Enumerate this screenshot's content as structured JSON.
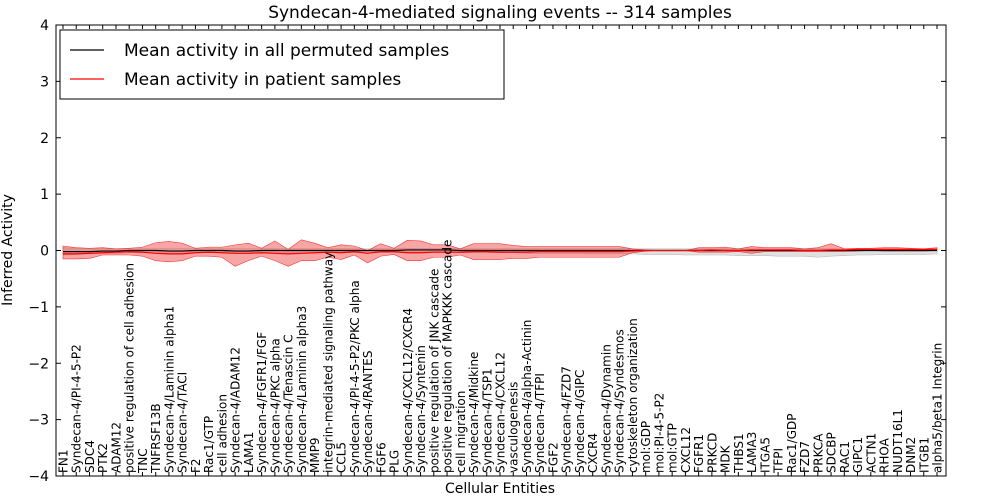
{
  "chart_data": {
    "type": "line",
    "title": "Syndecan-4-mediated signaling events -- 314 samples",
    "xlabel": "Cellular Entities",
    "ylabel": "Inferred Activity",
    "ylim": [
      -4,
      4
    ],
    "yticks": [
      -4,
      -3,
      -2,
      -1,
      0,
      1,
      2,
      3,
      4
    ],
    "grid": false,
    "legend_position": "top-left",
    "categories": [
      "FN1",
      "Syndecan-4/PI-4-5-P2",
      "SDC4",
      "PTK2",
      "ADAM12",
      "positive regulation of cell adhesion",
      "TNC",
      "TNFRSF13B",
      "Syndecan-4/Laminin alpha1",
      "Syndecan-4/TACI",
      "F2",
      "Rac1/GTP",
      "cell adhesion",
      "Syndecan-4/ADAM12",
      "LAMA1",
      "Syndecan-4/FGFR1/FGF",
      "Syndecan-4/PKC alpha",
      "Syndecan-4/Tenascin C",
      "Syndecan-4/Laminin alpha3",
      "MMP9",
      "integrin-mediated signaling pathway",
      "CCL5",
      "Syndecan-4/PI-4-5-P2/PKC alpha",
      "Syndecan-4/RANTES",
      "FGF6",
      "PLG",
      "Syndecan-4/CXCL12/CXCR4",
      "Syndecan-4/Syntenin",
      "positive regulation of JNK cascade",
      "positive regulation of MAPKKK cascade",
      "cell migration",
      "Syndecan-4/Midkine",
      "Syndecan-4/TSP1",
      "Syndecan-4/CXCL12",
      "vasculogenesis",
      "Syndecan-4/alpha-Actinin",
      "Syndecan-4/TFPI",
      "FGF2",
      "Syndecan-4/FZD7",
      "Syndecan-4/GIPC",
      "CXCR4",
      "Syndecan-4/Dynamin",
      "Syndecan-4/Syndesmos",
      "cytoskeleton organization",
      "mol:GDP",
      "mol:PI-4-5-P2",
      "mol:GTP",
      "CXCL12",
      "FGFR1",
      "PRKCD",
      "MDK",
      "THBS1",
      "LAMA3",
      "ITGA5",
      "TFPI",
      "Rac1/GDP",
      "FZD7",
      "PRKCA",
      "SDCBP",
      "RAC1",
      "GIPC1",
      "ACTN1",
      "RHOA",
      "NUDT16L1",
      "DNM2",
      "ITGB1",
      "alpha5/beta1 Integrin"
    ],
    "series": [
      {
        "name": "Mean activity in all permuted samples",
        "color": "#000000",
        "values": [
          -0.02,
          -0.02,
          -0.02,
          -0.01,
          -0.01,
          0.0,
          0.0,
          0.0,
          -0.01,
          -0.01,
          0.0,
          0.0,
          0.0,
          -0.01,
          -0.01,
          0.0,
          0.0,
          0.0,
          0.0,
          0.0,
          0.0,
          0.0,
          0.0,
          0.0,
          0.0,
          0.0,
          0.01,
          0.01,
          0.01,
          0.01,
          0.0,
          0.0,
          0.0,
          0.0,
          0.0,
          0.0,
          0.0,
          0.0,
          0.0,
          0.0,
          0.0,
          0.0,
          0.0,
          0.0,
          0.0,
          0.0,
          0.0,
          0.0,
          0.0,
          0.0,
          0.0,
          0.0,
          0.0,
          0.0,
          0.0,
          0.0,
          0.0,
          0.0,
          0.0,
          0.0,
          0.0,
          0.0,
          0.0,
          0.0,
          0.0,
          0.0,
          0.0
        ],
        "band_upper": [
          0.05,
          0.04,
          0.03,
          0.03,
          0.03,
          0.03,
          0.03,
          0.03,
          0.03,
          0.03,
          0.03,
          0.03,
          0.03,
          0.03,
          0.03,
          0.03,
          0.03,
          0.03,
          0.03,
          0.03,
          0.03,
          0.03,
          0.03,
          0.03,
          0.03,
          0.03,
          0.04,
          0.04,
          0.04,
          0.04,
          0.03,
          0.03,
          0.03,
          0.03,
          0.03,
          0.03,
          0.03,
          0.03,
          0.03,
          0.03,
          0.03,
          0.03,
          0.03,
          0.03,
          0.03,
          0.03,
          0.03,
          0.03,
          0.03,
          0.03,
          0.03,
          0.03,
          0.03,
          0.03,
          0.03,
          0.03,
          0.03,
          0.03,
          0.03,
          0.03,
          0.03,
          0.03,
          0.03,
          0.03,
          0.03,
          0.03,
          0.03
        ],
        "band_lower": [
          -0.08,
          -0.07,
          -0.06,
          -0.05,
          -0.05,
          -0.04,
          -0.04,
          -0.04,
          -0.05,
          -0.05,
          -0.04,
          -0.04,
          -0.04,
          -0.05,
          -0.05,
          -0.04,
          -0.04,
          -0.04,
          -0.04,
          -0.04,
          -0.04,
          -0.04,
          -0.04,
          -0.04,
          -0.04,
          -0.04,
          -0.03,
          -0.03,
          -0.03,
          -0.03,
          -0.04,
          -0.04,
          -0.04,
          -0.04,
          -0.04,
          -0.05,
          -0.05,
          -0.05,
          -0.05,
          -0.05,
          -0.06,
          -0.06,
          -0.06,
          -0.06,
          -0.07,
          -0.07,
          -0.07,
          -0.08,
          -0.08,
          -0.08,
          -0.08,
          -0.09,
          -0.09,
          -0.09,
          -0.1,
          -0.1,
          -0.1,
          -0.12,
          -0.1,
          -0.09,
          -0.08,
          -0.08,
          -0.07,
          -0.07,
          -0.07,
          -0.07,
          -0.06
        ]
      },
      {
        "name": "Mean activity in patient samples",
        "color": "#ff0000",
        "values": [
          -0.06,
          -0.06,
          -0.05,
          -0.04,
          -0.03,
          -0.02,
          -0.03,
          -0.05,
          -0.06,
          -0.06,
          -0.04,
          -0.03,
          -0.04,
          -0.05,
          -0.05,
          -0.04,
          -0.05,
          -0.06,
          -0.05,
          -0.04,
          -0.03,
          -0.04,
          -0.02,
          -0.05,
          -0.02,
          -0.02,
          -0.04,
          -0.04,
          -0.03,
          -0.03,
          -0.03,
          -0.02,
          -0.02,
          -0.03,
          -0.03,
          -0.03,
          -0.02,
          -0.02,
          -0.02,
          -0.02,
          -0.02,
          -0.02,
          -0.02,
          -0.01,
          0.0,
          0.0,
          0.0,
          0.0,
          0.0,
          0.01,
          0.0,
          0.0,
          0.01,
          0.01,
          0.01,
          0.01,
          0.0,
          0.0,
          0.01,
          0.01,
          0.02,
          0.02,
          0.02,
          0.02,
          0.02,
          0.02,
          0.02
        ],
        "band_upper": [
          0.08,
          0.05,
          0.04,
          0.05,
          0.03,
          0.04,
          0.06,
          0.14,
          0.16,
          0.13,
          0.04,
          0.06,
          0.06,
          0.1,
          0.13,
          0.04,
          0.17,
          0.02,
          0.19,
          0.13,
          0.05,
          0.1,
          0.08,
          0.0,
          0.12,
          0.04,
          0.18,
          0.17,
          0.1,
          0.1,
          0.03,
          0.12,
          0.12,
          0.12,
          0.09,
          0.07,
          0.07,
          0.07,
          0.07,
          0.07,
          0.07,
          0.07,
          0.07,
          0.03,
          0.01,
          0.0,
          0.0,
          0.0,
          0.05,
          0.05,
          0.06,
          0.03,
          0.07,
          0.05,
          0.05,
          0.05,
          0.03,
          0.05,
          0.12,
          0.03,
          0.04,
          0.04,
          0.05,
          0.05,
          0.04,
          0.03,
          0.05
        ],
        "band_lower": [
          -0.15,
          -0.15,
          -0.14,
          -0.08,
          -0.08,
          -0.08,
          -0.1,
          -0.18,
          -0.2,
          -0.18,
          -0.1,
          -0.1,
          -0.12,
          -0.28,
          -0.18,
          -0.1,
          -0.18,
          -0.28,
          -0.18,
          -0.18,
          -0.12,
          -0.16,
          -0.08,
          -0.22,
          -0.1,
          -0.07,
          -0.18,
          -0.18,
          -0.12,
          -0.12,
          -0.08,
          -0.16,
          -0.16,
          -0.16,
          -0.14,
          -0.14,
          -0.12,
          -0.12,
          -0.12,
          -0.12,
          -0.12,
          -0.12,
          -0.12,
          -0.04,
          -0.01,
          0.0,
          0.0,
          0.0,
          -0.03,
          -0.03,
          -0.03,
          -0.02,
          -0.05,
          -0.02,
          -0.02,
          -0.02,
          -0.02,
          -0.02,
          -0.02,
          -0.02,
          -0.01,
          0.0,
          -0.01,
          -0.01,
          -0.01,
          -0.01,
          0.0
        ]
      }
    ]
  }
}
